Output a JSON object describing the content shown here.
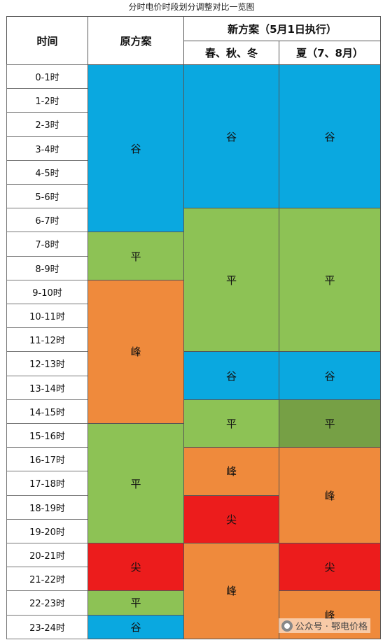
{
  "title": "分时电价时段划分调整对比一览图",
  "headers": {
    "time": "时间",
    "original": "原方案",
    "new": "新方案（5月1日执行）",
    "new_spring": "春、秋、冬",
    "new_summer": "夏（7、8月）"
  },
  "rows": [
    "0-1时",
    "1-2时",
    "2-3时",
    "3-4时",
    "4-5时",
    "5-6时",
    "6-7时",
    "7-8时",
    "8-9时",
    "9-10时",
    "10-11时",
    "11-12时",
    "12-13时",
    "13-14时",
    "14-15时",
    "15-16时",
    "16-17时",
    "17-18时",
    "18-19时",
    "19-20时",
    "20-21时",
    "21-22时",
    "22-23时",
    "23-24时"
  ],
  "segments": {
    "original": [
      {
        "label": "谷",
        "start": 0,
        "end": 7,
        "kind": "valley"
      },
      {
        "label": "平",
        "start": 7,
        "end": 9,
        "kind": "flat"
      },
      {
        "label": "峰",
        "start": 9,
        "end": 15,
        "kind": "peak"
      },
      {
        "label": "平",
        "start": 15,
        "end": 20,
        "kind": "flat"
      },
      {
        "label": "尖",
        "start": 20,
        "end": 22,
        "kind": "sharp"
      },
      {
        "label": "平",
        "start": 22,
        "end": 23,
        "kind": "flat"
      },
      {
        "label": "谷",
        "start": 23,
        "end": 24,
        "kind": "valley"
      }
    ],
    "spring": [
      {
        "label": "谷",
        "start": 0,
        "end": 6,
        "kind": "valley"
      },
      {
        "label": "平",
        "start": 6,
        "end": 12,
        "kind": "flat"
      },
      {
        "label": "谷",
        "start": 12,
        "end": 14,
        "kind": "valley"
      },
      {
        "label": "平",
        "start": 14,
        "end": 16,
        "kind": "flat"
      },
      {
        "label": "峰",
        "start": 16,
        "end": 18,
        "kind": "peak"
      },
      {
        "label": "尖",
        "start": 18,
        "end": 20,
        "kind": "sharp"
      },
      {
        "label": "峰",
        "start": 20,
        "end": 24,
        "kind": "peak"
      }
    ],
    "summer": [
      {
        "label": "谷",
        "start": 0,
        "end": 6,
        "kind": "valley"
      },
      {
        "label": "平",
        "start": 6,
        "end": 12,
        "kind": "flat"
      },
      {
        "label": "谷",
        "start": 12,
        "end": 14,
        "kind": "valley"
      },
      {
        "label": "平",
        "start": 14,
        "end": 16,
        "kind": "flatdark"
      },
      {
        "label": "峰",
        "start": 16,
        "end": 20,
        "kind": "peak"
      },
      {
        "label": "尖",
        "start": 20,
        "end": 22,
        "kind": "sharp"
      },
      {
        "label": "峰",
        "start": 22,
        "end": 24,
        "kind": "peak"
      }
    ]
  },
  "colors": {
    "valley": "#0aa8e0",
    "flat": "#8dc255",
    "flatdark": "#76a045",
    "peak": "#ef8a3c",
    "sharp": "#ec1c1c"
  },
  "watermark": {
    "text": "公众号 · 鄂电价格",
    "icon": "wechat-icon"
  }
}
